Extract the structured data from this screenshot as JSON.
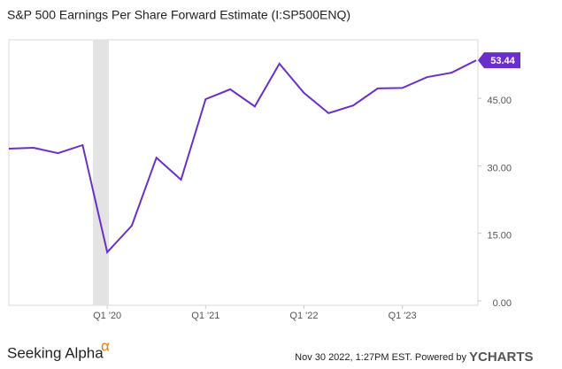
{
  "chart_data": {
    "type": "line",
    "title": "S&P 500 Earnings Per Share Forward Estimate (I:SP500ENQ)",
    "categories": [
      null,
      null,
      null,
      null,
      "Q1 '20",
      null,
      null,
      null,
      "Q1 '21",
      null,
      null,
      null,
      "Q1 '22",
      null,
      null,
      null,
      "Q1 '23",
      null,
      null,
      null
    ],
    "series": [
      {
        "name": "S&P 500 Earnings Per Share Forward Estimate",
        "color": "#6a2fc9",
        "values": [
          33.8,
          34.0,
          32.8,
          34.6,
          10.8,
          16.7,
          31.8,
          26.9,
          44.8,
          47.0,
          43.2,
          52.7,
          46.2,
          41.7,
          43.4,
          47.2,
          47.3,
          49.7,
          50.7,
          53.44
        ]
      }
    ],
    "ylim": [
      -1,
      58
    ],
    "yticks": [
      {
        "value": 0,
        "label": "0.00"
      },
      {
        "value": 15,
        "label": "15.00"
      },
      {
        "value": 30,
        "label": "30.00"
      },
      {
        "value": 45,
        "label": "45.00"
      }
    ],
    "grid": false
  },
  "footer": {
    "brand": "Seeking Alpha",
    "brand_mark": "α",
    "timestamp": "Nov 30 2022, 1:27PM EST.  Powered by",
    "provider": "YCHARTS"
  }
}
